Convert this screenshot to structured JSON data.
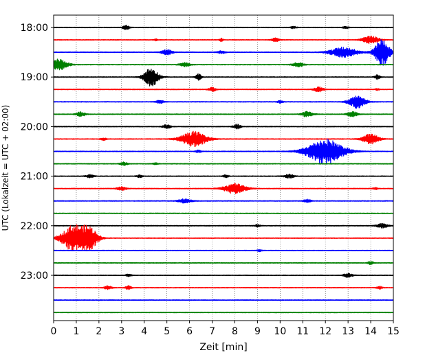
{
  "chart_data": {
    "type": "line",
    "subtype": "seismogram-helicorder",
    "xlabel": "Zeit  [min]",
    "ylabel": "UTC (Lokalzeit = UTC + 02:00)",
    "xlim": [
      0,
      15
    ],
    "x_ticks": [
      0,
      1,
      2,
      3,
      4,
      5,
      6,
      7,
      8,
      9,
      10,
      11,
      12,
      13,
      14,
      15
    ],
    "y_tick_labels": [
      "18:00",
      "19:00",
      "20:00",
      "21:00",
      "22:00",
      "23:00"
    ],
    "x_grid": true,
    "grid_style": "dotted",
    "trace_interval_min": 15,
    "traces_per_hour": 4,
    "start_time": "18:00",
    "color_cycle": [
      "#000000",
      "#ff0000",
      "#0000ff",
      "#008000"
    ],
    "traces": [
      {
        "time": "18:00",
        "color": "#000000",
        "events": [
          {
            "t": 3.2,
            "amp": 0.35,
            "dur": 0.35
          },
          {
            "t": 10.6,
            "amp": 0.2,
            "dur": 0.3
          },
          {
            "t": 12.9,
            "amp": 0.18,
            "dur": 0.3
          }
        ]
      },
      {
        "time": "18:15",
        "color": "#ff0000",
        "events": [
          {
            "t": 4.5,
            "amp": 0.15,
            "dur": 0.2
          },
          {
            "t": 7.4,
            "amp": 0.25,
            "dur": 0.2
          },
          {
            "t": 9.8,
            "amp": 0.3,
            "dur": 0.4
          },
          {
            "t": 14.0,
            "amp": 0.6,
            "dur": 0.9
          }
        ]
      },
      {
        "time": "18:30",
        "color": "#0000ff",
        "events": [
          {
            "t": 5.0,
            "amp": 0.4,
            "dur": 0.6
          },
          {
            "t": 7.4,
            "amp": 0.2,
            "dur": 0.4
          },
          {
            "t": 12.8,
            "amp": 0.8,
            "dur": 1.5
          },
          {
            "t": 14.5,
            "amp": 2.2,
            "dur": 0.8
          }
        ]
      },
      {
        "time": "18:45",
        "color": "#008000",
        "events": [
          {
            "t": 0.2,
            "amp": 0.9,
            "dur": 1.0
          },
          {
            "t": 5.8,
            "amp": 0.3,
            "dur": 0.6
          },
          {
            "t": 10.8,
            "amp": 0.35,
            "dur": 0.6
          }
        ]
      },
      {
        "time": "19:00",
        "color": "#000000",
        "events": [
          {
            "t": 4.3,
            "amp": 1.5,
            "dur": 0.8
          },
          {
            "t": 6.4,
            "amp": 0.5,
            "dur": 0.3
          },
          {
            "t": 14.3,
            "amp": 0.35,
            "dur": 0.3
          }
        ]
      },
      {
        "time": "19:15",
        "color": "#ff0000",
        "events": [
          {
            "t": 7.0,
            "amp": 0.3,
            "dur": 0.4
          },
          {
            "t": 11.7,
            "amp": 0.4,
            "dur": 0.5
          },
          {
            "t": 14.3,
            "amp": 0.2,
            "dur": 0.2
          }
        ]
      },
      {
        "time": "19:30",
        "color": "#0000ff",
        "events": [
          {
            "t": 4.7,
            "amp": 0.25,
            "dur": 0.4
          },
          {
            "t": 10.0,
            "amp": 0.2,
            "dur": 0.3
          },
          {
            "t": 13.4,
            "amp": 1.0,
            "dur": 0.9
          }
        ]
      },
      {
        "time": "19:45",
        "color": "#008000",
        "events": [
          {
            "t": 1.2,
            "amp": 0.35,
            "dur": 0.5
          },
          {
            "t": 11.2,
            "amp": 0.45,
            "dur": 0.6
          },
          {
            "t": 13.2,
            "amp": 0.4,
            "dur": 0.6
          }
        ]
      },
      {
        "time": "20:00",
        "color": "#000000",
        "events": [
          {
            "t": 5.0,
            "amp": 0.35,
            "dur": 0.4
          },
          {
            "t": 8.1,
            "amp": 0.35,
            "dur": 0.4
          }
        ]
      },
      {
        "time": "20:15",
        "color": "#ff0000",
        "events": [
          {
            "t": 2.2,
            "amp": 0.2,
            "dur": 0.3
          },
          {
            "t": 6.2,
            "amp": 1.2,
            "dur": 1.4
          },
          {
            "t": 14.0,
            "amp": 0.8,
            "dur": 0.9
          }
        ]
      },
      {
        "time": "20:30",
        "color": "#0000ff",
        "events": [
          {
            "t": 6.4,
            "amp": 0.2,
            "dur": 0.3
          },
          {
            "t": 12.0,
            "amp": 2.0,
            "dur": 2.0
          }
        ]
      },
      {
        "time": "20:45",
        "color": "#008000",
        "events": [
          {
            "t": 3.1,
            "amp": 0.25,
            "dur": 0.4
          },
          {
            "t": 4.5,
            "amp": 0.15,
            "dur": 0.3
          }
        ]
      },
      {
        "time": "21:00",
        "color": "#000000",
        "events": [
          {
            "t": 1.6,
            "amp": 0.25,
            "dur": 0.4
          },
          {
            "t": 3.8,
            "amp": 0.2,
            "dur": 0.3
          },
          {
            "t": 7.6,
            "amp": 0.2,
            "dur": 0.3
          },
          {
            "t": 10.4,
            "amp": 0.3,
            "dur": 0.5
          }
        ]
      },
      {
        "time": "21:15",
        "color": "#ff0000",
        "events": [
          {
            "t": 3.0,
            "amp": 0.3,
            "dur": 0.5
          },
          {
            "t": 8.0,
            "amp": 0.8,
            "dur": 1.2
          },
          {
            "t": 14.2,
            "amp": 0.15,
            "dur": 0.3
          }
        ]
      },
      {
        "time": "21:30",
        "color": "#0000ff",
        "events": [
          {
            "t": 5.8,
            "amp": 0.35,
            "dur": 0.7
          },
          {
            "t": 11.2,
            "amp": 0.25,
            "dur": 0.4
          }
        ]
      },
      {
        "time": "21:45",
        "color": "#008000",
        "events": []
      },
      {
        "time": "22:00",
        "color": "#000000",
        "events": [
          {
            "t": 9.0,
            "amp": 0.2,
            "dur": 0.3
          },
          {
            "t": 14.5,
            "amp": 0.35,
            "dur": 0.6
          }
        ]
      },
      {
        "time": "22:15",
        "color": "#ff0000",
        "events": [
          {
            "t": 0.9,
            "amp": 2.2,
            "dur": 1.3
          },
          {
            "t": 1.6,
            "amp": 1.6,
            "dur": 0.9
          }
        ]
      },
      {
        "time": "22:30",
        "color": "#0000ff",
        "events": [
          {
            "t": 9.1,
            "amp": 0.15,
            "dur": 0.3
          }
        ]
      },
      {
        "time": "22:45",
        "color": "#008000",
        "events": [
          {
            "t": 14.0,
            "amp": 0.25,
            "dur": 0.3
          }
        ]
      },
      {
        "time": "23:00",
        "color": "#000000",
        "events": [
          {
            "t": 3.3,
            "amp": 0.2,
            "dur": 0.3
          },
          {
            "t": 13.0,
            "amp": 0.3,
            "dur": 0.5
          }
        ]
      },
      {
        "time": "23:15",
        "color": "#ff0000",
        "events": [
          {
            "t": 2.4,
            "amp": 0.3,
            "dur": 0.4
          },
          {
            "t": 3.3,
            "amp": 0.3,
            "dur": 0.3
          },
          {
            "t": 14.4,
            "amp": 0.2,
            "dur": 0.3
          }
        ]
      },
      {
        "time": "23:30",
        "color": "#0000ff",
        "events": []
      },
      {
        "time": "23:45",
        "color": "#008000",
        "events": []
      }
    ]
  }
}
